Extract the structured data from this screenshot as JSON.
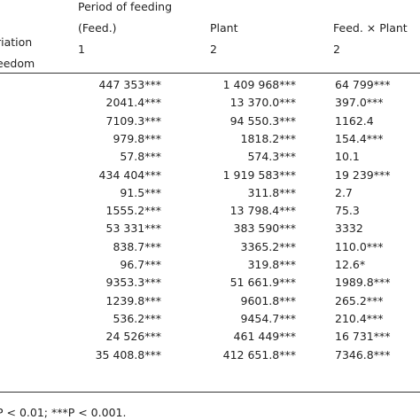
{
  "header": {
    "source": [
      "riation",
      "eedom"
    ],
    "columns": [
      {
        "lines": [
          "Period of feeding",
          "(Feed.)"
        ],
        "df": "1"
      },
      {
        "lines": [
          "Plant"
        ],
        "df": "2"
      },
      {
        "lines": [
          "Feed. × Plant"
        ],
        "df": "2"
      }
    ]
  },
  "table": {
    "rows": [
      [
        "447 353***",
        "1 409 968***",
        "64 799***"
      ],
      [
        "2041.4***",
        "13 370.0***",
        "397.0***"
      ],
      [
        "7109.3***",
        "94 550.3***",
        "1162.4"
      ],
      [
        "979.8***",
        "1818.2***",
        "154.4***"
      ],
      [
        "57.8***",
        "574.3***",
        "10.1"
      ],
      [
        "434 404***",
        "1 919 583***",
        "19 239***"
      ],
      [
        "91.5***",
        "311.8***",
        "2.7"
      ],
      [
        "1555.2***",
        "13 798.4***",
        "75.3"
      ],
      [
        "53 331***",
        "383 590***",
        "3332"
      ],
      [
        "838.7***",
        "3365.2***",
        "110.0***"
      ],
      [
        "96.7***",
        "319.8***",
        "12.6*"
      ],
      [
        "9353.3***",
        "51 661.9***",
        "1989.8***"
      ],
      [
        "1239.8***",
        "9601.8***",
        "265.2***"
      ],
      [
        "536.2***",
        "9454.7***",
        "210.4***"
      ],
      [
        "24 526***",
        "461 449***",
        "16 731***"
      ],
      [
        "35 408.8***",
        "412 651.8***",
        "7346.8***"
      ]
    ]
  },
  "footnote": "P < 0.01; ***P < 0.001."
}
